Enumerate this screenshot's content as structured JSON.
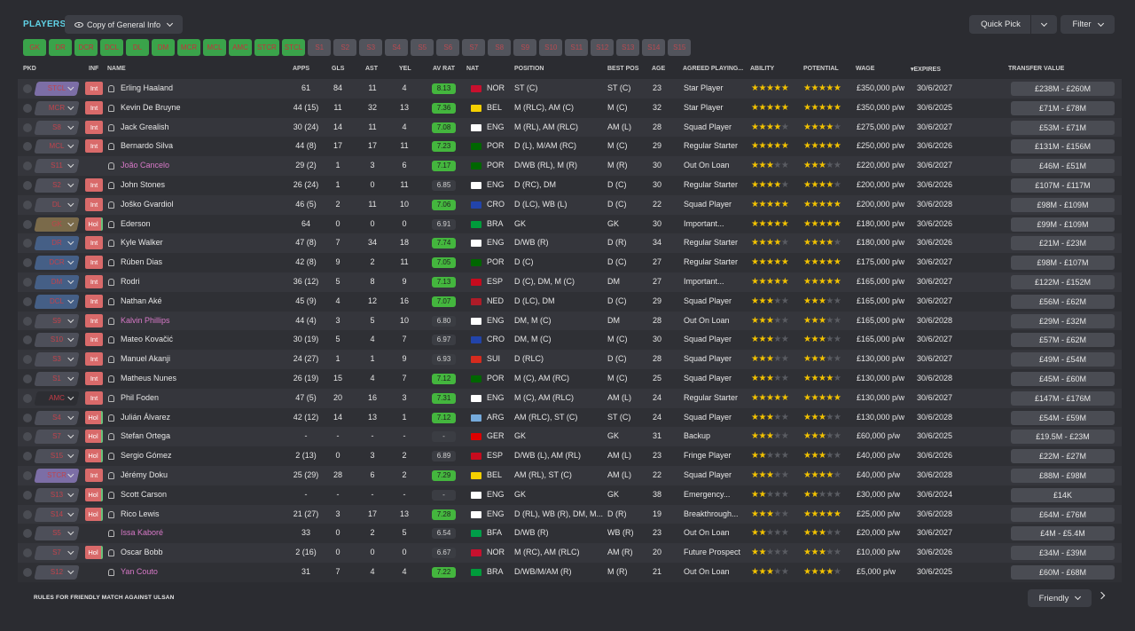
{
  "page_title": "PLAYERS",
  "view_select": "Copy of General Info",
  "quick_pick": "Quick Pick",
  "filter": "Filter",
  "position_buttons": [
    {
      "label": "GK",
      "on": true
    },
    {
      "label": "DR",
      "on": true
    },
    {
      "label": "DCR",
      "on": true
    },
    {
      "label": "DCL",
      "on": true
    },
    {
      "label": "DL",
      "on": true
    },
    {
      "label": "DM",
      "on": true
    },
    {
      "label": "MCR",
      "on": true
    },
    {
      "label": "MCL",
      "on": true
    },
    {
      "label": "AMC",
      "on": true
    },
    {
      "label": "STCR",
      "on": true
    },
    {
      "label": "STCL",
      "on": true
    },
    {
      "label": "S1",
      "on": false
    },
    {
      "label": "S2",
      "on": false
    },
    {
      "label": "S3",
      "on": false
    },
    {
      "label": "S4",
      "on": false
    },
    {
      "label": "S5",
      "on": false
    },
    {
      "label": "S6",
      "on": false
    },
    {
      "label": "S7",
      "on": false
    },
    {
      "label": "S8",
      "on": false
    },
    {
      "label": "S9",
      "on": false
    },
    {
      "label": "S10",
      "on": false
    },
    {
      "label": "S11",
      "on": false
    },
    {
      "label": "S12",
      "on": false
    },
    {
      "label": "S13",
      "on": false
    },
    {
      "label": "S14",
      "on": false
    },
    {
      "label": "S15",
      "on": false
    }
  ],
  "columns": {
    "pkd": "PKD",
    "inf": "INF",
    "name": "NAME",
    "apps": "APPS",
    "gls": "GLS",
    "ast": "AST",
    "yel": "YEL",
    "avrat": "AV RAT",
    "nat": "NAT",
    "position": "POSITION",
    "bestpos": "BEST POS",
    "age": "AGE",
    "agreed": "AGREED PLAYING...",
    "ability": "ABILITY",
    "potential": "POTENTIAL",
    "wage": "WAGE",
    "expires": "EXPIRES",
    "tv": "TRANSFER VALUE"
  },
  "players": [
    {
      "pkd": "STCL",
      "pkd_style": "purple",
      "inf": "Int",
      "name": "Erling Haaland",
      "loan": false,
      "apps": "61",
      "gls": "84",
      "ast": "11",
      "yel": "4",
      "rat": "8.13",
      "rat_green": true,
      "nat": "NOR",
      "flag": "#c8102e",
      "pos": "ST (C)",
      "best": "ST (C)",
      "age": "23",
      "role": "Star Player",
      "ability": 5,
      "potential": 5,
      "wage": "£350,000 p/w",
      "exp": "30/6/2027",
      "tv": "£238M - £260M"
    },
    {
      "pkd": "MCR",
      "pkd_style": "",
      "inf": "Int",
      "name": "Kevin De Bruyne",
      "loan": false,
      "apps": "44 (15)",
      "gls": "11",
      "ast": "32",
      "yel": "13",
      "rat": "7.36",
      "rat_green": true,
      "nat": "BEL",
      "flag": "#f4d000",
      "pos": "M (RLC), AM (C)",
      "best": "M (C)",
      "age": "32",
      "role": "Star Player",
      "ability": 4.5,
      "potential": 4.5,
      "wage": "£350,000 p/w",
      "exp": "30/6/2025",
      "tv": "£71M - £78M"
    },
    {
      "pkd": "S8",
      "pkd_style": "",
      "inf": "Int",
      "name": "Jack Grealish",
      "loan": false,
      "apps": "30 (24)",
      "gls": "14",
      "ast": "11",
      "yel": "4",
      "rat": "7.08",
      "rat_green": true,
      "nat": "ENG",
      "flag": "#ffffff",
      "pos": "M (RL), AM (RLC)",
      "best": "AM (L)",
      "age": "28",
      "role": "Squad Player",
      "ability": 4,
      "potential": 4,
      "wage": "£275,000 p/w",
      "exp": "30/6/2027",
      "tv": "£53M - £71M"
    },
    {
      "pkd": "MCL",
      "pkd_style": "",
      "inf": "Int",
      "name": "Bernardo Silva",
      "loan": false,
      "apps": "44 (8)",
      "gls": "17",
      "ast": "17",
      "yel": "11",
      "rat": "7.23",
      "rat_green": true,
      "nat": "POR",
      "flag": "#006600",
      "pos": "D (L), M/AM (RC)",
      "best": "M (C)",
      "age": "29",
      "role": "Regular Starter",
      "ability": 4.5,
      "potential": 4.5,
      "wage": "£250,000 p/w",
      "exp": "30/6/2026",
      "tv": "£131M - £156M"
    },
    {
      "pkd": "S11",
      "pkd_style": "",
      "inf": "",
      "name": "João Cancelo",
      "loan": true,
      "apps": "29 (2)",
      "gls": "1",
      "ast": "3",
      "yel": "6",
      "rat": "7.17",
      "rat_green": true,
      "nat": "POR",
      "flag": "#006600",
      "pos": "D/WB (RL), M (R)",
      "best": "M (R)",
      "age": "30",
      "role": "Out On Loan",
      "ability": 3,
      "potential": 3,
      "wage": "£220,000 p/w",
      "exp": "30/6/2027",
      "tv": "£46M - £51M"
    },
    {
      "pkd": "S2",
      "pkd_style": "",
      "inf": "Int",
      "name": "John Stones",
      "loan": false,
      "apps": "26 (24)",
      "gls": "1",
      "ast": "0",
      "yel": "11",
      "rat": "6.85",
      "rat_green": false,
      "nat": "ENG",
      "flag": "#ffffff",
      "pos": "D (RC), DM",
      "best": "D (C)",
      "age": "30",
      "role": "Regular Starter",
      "ability": 4,
      "potential": 4,
      "wage": "£200,000 p/w",
      "exp": "30/6/2026",
      "tv": "£107M - £117M"
    },
    {
      "pkd": "DL",
      "pkd_style": "",
      "inf": "Int",
      "name": "Joško Gvardiol",
      "loan": false,
      "apps": "46 (5)",
      "gls": "2",
      "ast": "11",
      "yel": "10",
      "rat": "7.06",
      "rat_green": true,
      "nat": "CRO",
      "flag": "#2244aa",
      "pos": "D (LC), WB (L)",
      "best": "D (C)",
      "age": "22",
      "role": "Squad Player",
      "ability": 4.5,
      "potential": 4.5,
      "wage": "£200,000 p/w",
      "exp": "30/6/2028",
      "tv": "£98M - £109M"
    },
    {
      "pkd": "GK",
      "pkd_style": "gold",
      "inf": "Hol",
      "name": "Ederson",
      "loan": false,
      "apps": "64",
      "gls": "0",
      "ast": "0",
      "yel": "0",
      "rat": "6.91",
      "rat_green": false,
      "nat": "BRA",
      "flag": "#009c3b",
      "pos": "GK",
      "best": "GK",
      "age": "30",
      "role": "Important...",
      "ability": 4.5,
      "potential": 4.5,
      "wage": "£180,000 p/w",
      "exp": "30/6/2026",
      "tv": "£99M - £109M"
    },
    {
      "pkd": "DR",
      "pkd_style": "blue",
      "inf": "Int",
      "name": "Kyle Walker",
      "loan": false,
      "apps": "47 (8)",
      "gls": "7",
      "ast": "34",
      "yel": "18",
      "rat": "7.74",
      "rat_green": true,
      "nat": "ENG",
      "flag": "#ffffff",
      "pos": "D/WB (R)",
      "best": "D (R)",
      "age": "34",
      "role": "Regular Starter",
      "ability": 4,
      "potential": 4,
      "wage": "£180,000 p/w",
      "exp": "30/6/2026",
      "tv": "£21M - £23M"
    },
    {
      "pkd": "DCR",
      "pkd_style": "blue",
      "inf": "Int",
      "name": "Rúben Dias",
      "loan": false,
      "apps": "42 (8)",
      "gls": "9",
      "ast": "2",
      "yel": "11",
      "rat": "7.05",
      "rat_green": true,
      "nat": "POR",
      "flag": "#006600",
      "pos": "D (C)",
      "best": "D (C)",
      "age": "27",
      "role": "Regular Starter",
      "ability": 4.5,
      "potential": 4.5,
      "wage": "£175,000 p/w",
      "exp": "30/6/2027",
      "tv": "£98M - £107M"
    },
    {
      "pkd": "DM",
      "pkd_style": "blue",
      "inf": "Int",
      "name": "Rodri",
      "loan": false,
      "apps": "36 (12)",
      "gls": "5",
      "ast": "8",
      "yel": "9",
      "rat": "7.13",
      "rat_green": true,
      "nat": "ESP",
      "flag": "#c60b1e",
      "pos": "D (C), DM, M (C)",
      "best": "DM",
      "age": "27",
      "role": "Important...",
      "ability": 5,
      "potential": 5,
      "wage": "£165,000 p/w",
      "exp": "30/6/2027",
      "tv": "£122M - £152M"
    },
    {
      "pkd": "DCL",
      "pkd_style": "blue",
      "inf": "Int",
      "name": "Nathan Aké",
      "loan": false,
      "apps": "45 (9)",
      "gls": "4",
      "ast": "12",
      "yel": "16",
      "rat": "7.07",
      "rat_green": true,
      "nat": "NED",
      "flag": "#ae1c28",
      "pos": "D (LC), DM",
      "best": "D (C)",
      "age": "29",
      "role": "Squad Player",
      "ability": 3,
      "potential": 3,
      "wage": "£165,000 p/w",
      "exp": "30/6/2027",
      "tv": "£56M - £62M"
    },
    {
      "pkd": "S9",
      "pkd_style": "",
      "inf": "Int",
      "name": "Kalvin Phillips",
      "loan": true,
      "apps": "44 (4)",
      "gls": "3",
      "ast": "5",
      "yel": "10",
      "rat": "6.80",
      "rat_green": false,
      "nat": "ENG",
      "flag": "#ffffff",
      "pos": "DM, M (C)",
      "best": "DM",
      "age": "28",
      "role": "Out On Loan",
      "ability": 2.5,
      "potential": 2.5,
      "wage": "£165,000 p/w",
      "exp": "30/6/2028",
      "tv": "£29M - £32M"
    },
    {
      "pkd": "S10",
      "pkd_style": "",
      "inf": "Int",
      "name": "Mateo Kovačić",
      "loan": false,
      "apps": "30 (19)",
      "gls": "5",
      "ast": "4",
      "yel": "7",
      "rat": "6.97",
      "rat_green": false,
      "nat": "CRO",
      "flag": "#2244aa",
      "pos": "DM, M (C)",
      "best": "M (C)",
      "age": "30",
      "role": "Squad Player",
      "ability": 3,
      "potential": 3,
      "wage": "£165,000 p/w",
      "exp": "30/6/2027",
      "tv": "£57M - £62M"
    },
    {
      "pkd": "S3",
      "pkd_style": "",
      "inf": "Int",
      "name": "Manuel Akanji",
      "loan": false,
      "apps": "24 (27)",
      "gls": "1",
      "ast": "1",
      "yel": "9",
      "rat": "6.93",
      "rat_green": false,
      "nat": "SUI",
      "flag": "#d52b1e",
      "pos": "D (RLC)",
      "best": "D (C)",
      "age": "28",
      "role": "Squad Player",
      "ability": 3,
      "potential": 3,
      "wage": "£130,000 p/w",
      "exp": "30/6/2027",
      "tv": "£49M - £54M"
    },
    {
      "pkd": "S1",
      "pkd_style": "",
      "inf": "Int",
      "name": "Matheus Nunes",
      "loan": false,
      "apps": "26 (19)",
      "gls": "15",
      "ast": "4",
      "yel": "7",
      "rat": "7.12",
      "rat_green": true,
      "nat": "POR",
      "flag": "#006600",
      "pos": "M (C), AM (RC)",
      "best": "M (C)",
      "age": "25",
      "role": "Squad Player",
      "ability": 3,
      "potential": 3.5,
      "wage": "£130,000 p/w",
      "exp": "30/6/2028",
      "tv": "£45M - £60M"
    },
    {
      "pkd": "AMC",
      "pkd_style": "red",
      "inf": "Int",
      "name": "Phil Foden",
      "loan": false,
      "apps": "47 (5)",
      "gls": "20",
      "ast": "16",
      "yel": "3",
      "rat": "7.31",
      "rat_green": true,
      "nat": "ENG",
      "flag": "#ffffff",
      "pos": "M (C), AM (RLC)",
      "best": "AM (L)",
      "age": "24",
      "role": "Regular Starter",
      "ability": 4.5,
      "potential": 4.5,
      "wage": "£130,000 p/w",
      "exp": "30/6/2027",
      "tv": "£147M - £176M"
    },
    {
      "pkd": "S4",
      "pkd_style": "",
      "inf": "Hol",
      "name": "Julián Álvarez",
      "loan": false,
      "apps": "42 (12)",
      "gls": "14",
      "ast": "13",
      "yel": "1",
      "rat": "7.12",
      "rat_green": true,
      "nat": "ARG",
      "flag": "#75aadb",
      "pos": "AM (RLC), ST (C)",
      "best": "ST (C)",
      "age": "24",
      "role": "Squad Player",
      "ability": 3,
      "potential": 3,
      "wage": "£130,000 p/w",
      "exp": "30/6/2028",
      "tv": "£54M - £59M"
    },
    {
      "pkd": "S7",
      "pkd_style": "",
      "inf": "Hol",
      "name": "Stefan Ortega",
      "loan": false,
      "apps": "-",
      "gls": "-",
      "ast": "-",
      "yel": "-",
      "rat": "-",
      "rat_green": false,
      "nat": "GER",
      "flag": "#dd0000",
      "pos": "GK",
      "best": "GK",
      "age": "31",
      "role": "Backup",
      "ability": 2.5,
      "potential": 2.5,
      "wage": "£60,000 p/w",
      "exp": "30/6/2025",
      "tv": "£19.5M - £23M"
    },
    {
      "pkd": "S15",
      "pkd_style": "",
      "inf": "Hol",
      "name": "Sergio Gómez",
      "loan": false,
      "apps": "2 (13)",
      "gls": "0",
      "ast": "3",
      "yel": "2",
      "rat": "6.89",
      "rat_green": false,
      "nat": "ESP",
      "flag": "#c60b1e",
      "pos": "D/WB (L), AM (RL)",
      "best": "AM (L)",
      "age": "23",
      "role": "Fringe Player",
      "ability": 2,
      "potential": 2.5,
      "wage": "£40,000 p/w",
      "exp": "30/6/2026",
      "tv": "£22M - £27M"
    },
    {
      "pkd": "STCR",
      "pkd_style": "purple",
      "inf": "Int",
      "name": "Jérémy Doku",
      "loan": false,
      "apps": "25 (29)",
      "gls": "28",
      "ast": "6",
      "yel": "2",
      "rat": "7.29",
      "rat_green": true,
      "nat": "BEL",
      "flag": "#f4d000",
      "pos": "AM (RL), ST (C)",
      "best": "AM (L)",
      "age": "22",
      "role": "Squad Player",
      "ability": 3,
      "potential": 3.5,
      "wage": "£40,000 p/w",
      "exp": "30/6/2028",
      "tv": "£88M - £98M"
    },
    {
      "pkd": "S13",
      "pkd_style": "",
      "inf": "Hol",
      "name": "Scott Carson",
      "loan": false,
      "apps": "-",
      "gls": "-",
      "ast": "-",
      "yel": "-",
      "rat": "-",
      "rat_green": false,
      "nat": "ENG",
      "flag": "#ffffff",
      "pos": "GK",
      "best": "GK",
      "age": "38",
      "role": "Emergency...",
      "ability": 1.5,
      "potential": 1.5,
      "wage": "£30,000 p/w",
      "exp": "30/6/2024",
      "tv": "£14K"
    },
    {
      "pkd": "S14",
      "pkd_style": "",
      "inf": "Hol",
      "name": "Rico Lewis",
      "loan": false,
      "apps": "21 (27)",
      "gls": "3",
      "ast": "17",
      "yel": "13",
      "rat": "7.28",
      "rat_green": true,
      "nat": "ENG",
      "flag": "#ffffff",
      "pos": "D (RL), WB (R), DM, M...",
      "best": "D (R)",
      "age": "19",
      "role": "Breakthrough...",
      "ability": 3,
      "potential": 4.5,
      "wage": "£25,000 p/w",
      "exp": "30/6/2028",
      "tv": "£64M - £76M"
    },
    {
      "pkd": "S5",
      "pkd_style": "",
      "inf": "",
      "name": "Issa Kaboré",
      "loan": true,
      "apps": "33",
      "gls": "0",
      "ast": "2",
      "yel": "5",
      "rat": "6.54",
      "rat_green": false,
      "nat": "BFA",
      "flag": "#009e49",
      "pos": "D/WB (R)",
      "best": "WB (R)",
      "age": "23",
      "role": "Out On Loan",
      "ability": 2,
      "potential": 2.5,
      "wage": "£20,000 p/w",
      "exp": "30/6/2027",
      "tv": "£4M - £5.4M"
    },
    {
      "pkd": "S7",
      "pkd_style": "",
      "inf": "Hol",
      "name": "Oscar Bobb",
      "loan": false,
      "apps": "2 (16)",
      "gls": "0",
      "ast": "0",
      "yel": "0",
      "rat": "6.67",
      "rat_green": false,
      "nat": "NOR",
      "flag": "#c8102e",
      "pos": "M (RC), AM (RLC)",
      "best": "AM (R)",
      "age": "20",
      "role": "Future Prospect",
      "ability": 2,
      "potential": 2.5,
      "wage": "£10,000 p/w",
      "exp": "30/6/2026",
      "tv": "£34M - £39M"
    },
    {
      "pkd": "S12",
      "pkd_style": "",
      "inf": "",
      "name": "Yan Couto",
      "loan": true,
      "apps": "31",
      "gls": "7",
      "ast": "4",
      "yel": "4",
      "rat": "7.22",
      "rat_green": true,
      "nat": "BRA",
      "flag": "#009c3b",
      "pos": "D/WB/M/AM (R)",
      "best": "M (R)",
      "age": "21",
      "role": "Out On Loan",
      "ability": 3,
      "potential": 3.5,
      "wage": "£5,000 p/w",
      "exp": "30/6/2025",
      "tv": "£60M - £68M"
    }
  ],
  "footer": {
    "rules": "RULES FOR FRIENDLY MATCH AGAINST ULSAN",
    "friendly": "Friendly"
  }
}
